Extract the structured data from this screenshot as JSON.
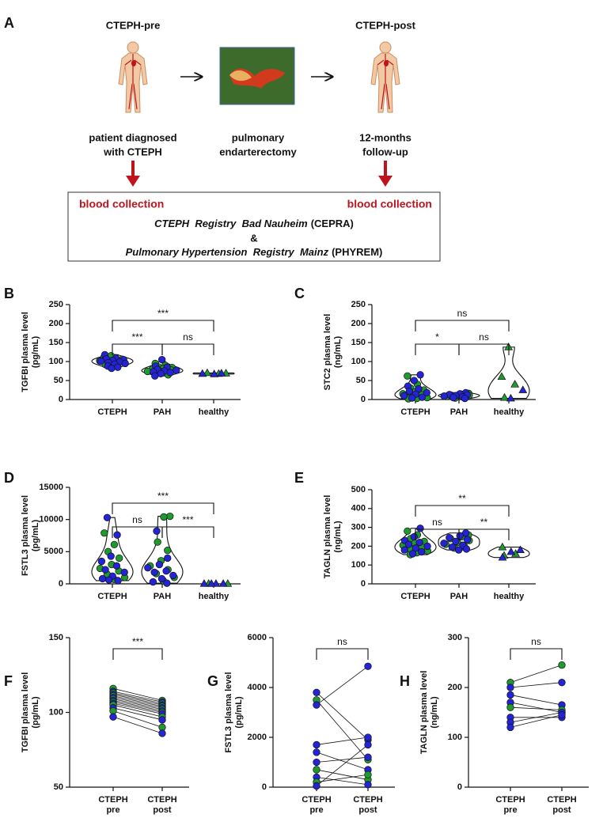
{
  "panel_a": {
    "letter": "A",
    "stages": [
      {
        "title": "CTEPH-pre",
        "caption": [
          "patient diagnosed",
          "with CTEPH"
        ]
      },
      {
        "caption": [
          "pulmonary",
          "endarterectomy"
        ]
      },
      {
        "title": "CTEPH-post",
        "caption": [
          "12-months",
          "follow-up"
        ]
      }
    ],
    "box": {
      "labels": [
        "blood collection",
        "blood collection"
      ],
      "registries": [
        {
          "name": "CTEPH  Registry  Bad Nauheim",
          "abbr": "(CEPRA)"
        },
        {
          "name": "Pulmonary Hypertension  Registry  Mainz",
          "abbr": "(PHYREM)"
        }
      ],
      "joiner": "&"
    }
  },
  "chart_data": [
    {
      "type": "violin",
      "panel": "B",
      "ylabel": [
        "TGFBI plasma level",
        "(pg/mL)"
      ],
      "categories": [
        "CTEPH",
        "PAH",
        "healthy"
      ],
      "ylim": [
        0,
        250
      ],
      "yticks": [
        0,
        50,
        100,
        150,
        200,
        250
      ],
      "markers": [
        "circle",
        "circle",
        "triangle"
      ],
      "groups": [
        {
          "sets": [
            {
              "color": "#1f9a2f",
              "values": [
                112,
                110,
                108,
                106,
                104,
                102,
                100,
                98,
                96,
                94,
                92,
                90,
                115
              ]
            },
            {
              "color": "#2424d6",
              "values": [
                118,
                109,
                107,
                105,
                103,
                101,
                99,
                97,
                95,
                93,
                88,
                85,
                82
              ]
            }
          ]
        },
        {
          "sets": [
            {
              "color": "#1f9a2f",
              "values": [
                95,
                90,
                86,
                84,
                82,
                80,
                78,
                76,
                74,
                72,
                70,
                65
              ]
            },
            {
              "color": "#2424d6",
              "values": [
                105,
                88,
                85,
                79,
                77,
                75,
                73,
                71,
                68,
                62
              ]
            }
          ]
        },
        {
          "sets": [
            {
              "color": "#1f9a2f",
              "values": [
                68,
                70,
                69
              ]
            },
            {
              "color": "#2424d6",
              "values": [
                67,
                68,
                69
              ]
            }
          ]
        }
      ],
      "brackets": [
        {
          "from": 0,
          "to": 2,
          "label": "***"
        },
        {
          "from": 0,
          "to": 1,
          "label": "***"
        },
        {
          "from": 1,
          "to": 2,
          "label": "ns"
        }
      ]
    },
    {
      "type": "violin",
      "panel": "C",
      "ylabel": [
        "STC2 plasma level",
        "(ng/mL)"
      ],
      "categories": [
        "CTEPH",
        "PAH",
        "healthy"
      ],
      "ylim": [
        0,
        250
      ],
      "yticks": [
        0,
        50,
        100,
        150,
        200,
        250
      ],
      "markers": [
        "circle",
        "circle",
        "triangle"
      ],
      "groups": [
        {
          "sets": [
            {
              "color": "#1f9a2f",
              "values": [
                62,
                40,
                30,
                25,
                20,
                15,
                12,
                8,
                5,
                3,
                2
              ]
            },
            {
              "color": "#2424d6",
              "values": [
                65,
                50,
                35,
                28,
                22,
                18,
                14,
                10,
                6,
                4
              ]
            }
          ]
        },
        {
          "sets": [
            {
              "color": "#1f9a2f",
              "values": [
                16,
                14,
                12,
                11,
                10,
                8,
                6,
                4
              ]
            },
            {
              "color": "#2424d6",
              "values": [
                18,
                15,
                13,
                12,
                10,
                9,
                7,
                5,
                3
              ]
            }
          ]
        },
        {
          "sets": [
            {
              "color": "#1f9a2f",
              "values": [
                138,
                60,
                40,
                5
              ]
            },
            {
              "color": "#2424d6",
              "values": [
                25,
                3
              ]
            }
          ]
        }
      ],
      "brackets": [
        {
          "from": 0,
          "to": 2,
          "label": "ns"
        },
        {
          "from": 0,
          "to": 1,
          "label": "*"
        },
        {
          "from": 1,
          "to": 2,
          "label": "ns"
        }
      ]
    },
    {
      "type": "violin",
      "panel": "D",
      "ylabel": [
        "FSTL3 plasma level",
        "(pg/mL)"
      ],
      "categories": [
        "CTEPH",
        "PAH",
        "healthy"
      ],
      "ylim": [
        0,
        15000
      ],
      "yticks": [
        0,
        5000,
        10000,
        15000
      ],
      "markers": [
        "circle",
        "circle",
        "triangle"
      ],
      "groups": [
        {
          "sets": [
            {
              "color": "#1f9a2f",
              "values": [
                7900,
                6100,
                5000,
                4000,
                3000,
                2400,
                2000,
                1500,
                1000,
                700
              ]
            },
            {
              "color": "#2424d6",
              "values": [
                10300,
                7600,
                4300,
                3500,
                2800,
                2200,
                1800,
                1200,
                800,
                500,
                600
              ]
            }
          ]
        },
        {
          "sets": [
            {
              "color": "#1f9a2f",
              "values": [
                10500,
                10400,
                6500,
                5200,
                3600,
                2800,
                2200,
                1600,
                1000,
                500
              ]
            },
            {
              "color": "#2424d6",
              "values": [
                8200,
                4000,
                3000,
                2500,
                2000,
                1800,
                1300,
                800,
                300,
                100
              ]
            }
          ]
        },
        {
          "sets": [
            {
              "color": "#1f9a2f",
              "values": [
                20,
                20
              ]
            },
            {
              "color": "#2424d6",
              "values": [
                20,
                20,
                20,
                20
              ]
            }
          ]
        }
      ],
      "brackets": [
        {
          "from": 0,
          "to": 2,
          "label": "***"
        },
        {
          "from": 0,
          "to": 1,
          "label": "ns"
        },
        {
          "from": 1,
          "to": 2,
          "label": "***"
        }
      ]
    },
    {
      "type": "violin",
      "panel": "E",
      "ylabel": [
        "TAGLN plasma level",
        "(ng/mL)"
      ],
      "categories": [
        "CTEPH",
        "PAH",
        "healthy"
      ],
      "ylim": [
        0,
        500
      ],
      "yticks": [
        0,
        100,
        200,
        300,
        400,
        500
      ],
      "markers": [
        "circle",
        "circle",
        "triangle"
      ],
      "groups": [
        {
          "sets": [
            {
              "color": "#1f9a2f",
              "values": [
                280,
                260,
                240,
                225,
                215,
                205,
                195,
                185,
                175,
                165,
                155
              ]
            },
            {
              "color": "#2424d6",
              "values": [
                295,
                250,
                230,
                220,
                210,
                200,
                190,
                180,
                170,
                160
              ]
            }
          ]
        },
        {
          "sets": [
            {
              "color": "#1f9a2f",
              "values": [
                260,
                250,
                240,
                230,
                220,
                210,
                200,
                190
              ]
            },
            {
              "color": "#2424d6",
              "values": [
                270,
                255,
                245,
                235,
                225,
                215,
                205,
                195,
                185,
                180
              ]
            }
          ]
        },
        {
          "sets": [
            {
              "color": "#1f9a2f",
              "values": [
                195,
                160,
                150
              ]
            },
            {
              "color": "#2424d6",
              "values": [
                180,
                170,
                140
              ]
            }
          ]
        }
      ],
      "brackets": [
        {
          "from": 0,
          "to": 2,
          "label": "**"
        },
        {
          "from": 0,
          "to": 1,
          "label": "ns"
        },
        {
          "from": 1,
          "to": 2,
          "label": "**"
        }
      ]
    },
    {
      "type": "paired",
      "panel": "F",
      "ylabel": [
        "TGFBI plasma level",
        "(pg/mL)"
      ],
      "categories": [
        [
          "CTEPH",
          "pre"
        ],
        [
          "CTEPH",
          "post"
        ]
      ],
      "ylim": [
        50,
        150
      ],
      "yticks": [
        50,
        100,
        150
      ],
      "series": [
        {
          "color": "#1f9a2f",
          "values": [
            116,
            108
          ]
        },
        {
          "color": "#2424d6",
          "values": [
            114,
            107
          ]
        },
        {
          "color": "#1f9a2f",
          "values": [
            113,
            106
          ]
        },
        {
          "color": "#2424d6",
          "values": [
            112,
            105
          ]
        },
        {
          "color": "#1f9a2f",
          "values": [
            111,
            104
          ]
        },
        {
          "color": "#2424d6",
          "values": [
            110,
            103
          ]
        },
        {
          "color": "#1f9a2f",
          "values": [
            109,
            102
          ]
        },
        {
          "color": "#2424d6",
          "values": [
            108,
            101
          ]
        },
        {
          "color": "#1f9a2f",
          "values": [
            107,
            100
          ]
        },
        {
          "color": "#2424d6",
          "values": [
            106,
            99
          ]
        },
        {
          "color": "#1f9a2f",
          "values": [
            105,
            97
          ]
        },
        {
          "color": "#2424d6",
          "values": [
            103,
            95
          ]
        },
        {
          "color": "#1f9a2f",
          "values": [
            101,
            90
          ]
        },
        {
          "color": "#2424d6",
          "values": [
            97,
            86
          ]
        }
      ],
      "brackets": [
        {
          "from": 0,
          "to": 1,
          "label": "***"
        }
      ]
    },
    {
      "type": "paired",
      "panel": "G",
      "ylabel": [
        "FSTL3 plasma level",
        "(pg/mL)"
      ],
      "categories": [
        [
          "CTEPH",
          "pre"
        ],
        [
          "CTEPH",
          "post"
        ]
      ],
      "ylim": [
        0,
        6000
      ],
      "yticks": [
        0,
        2000,
        4000,
        6000
      ],
      "series": [
        {
          "color": "#2424d6",
          "values": [
            3800,
            1900
          ]
        },
        {
          "color": "#1f9a2f",
          "values": [
            3500,
            1100
          ]
        },
        {
          "color": "#2424d6",
          "values": [
            3300,
            4850
          ]
        },
        {
          "color": "#2424d6",
          "values": [
            1700,
            2000
          ]
        },
        {
          "color": "#2424d6",
          "values": [
            1400,
            700
          ]
        },
        {
          "color": "#2424d6",
          "values": [
            1000,
            1200
          ]
        },
        {
          "color": "#1f9a2f",
          "values": [
            700,
            300
          ]
        },
        {
          "color": "#2424d6",
          "values": [
            400,
            100
          ]
        },
        {
          "color": "#1f9a2f",
          "values": [
            200,
            500
          ]
        },
        {
          "color": "#2424d6",
          "values": [
            50,
            1700
          ]
        }
      ],
      "brackets": [
        {
          "from": 0,
          "to": 1,
          "label": "ns"
        }
      ]
    },
    {
      "type": "paired",
      "panel": "H",
      "ylabel": [
        "TAGLN plasma level",
        "(ng/mL)"
      ],
      "categories": [
        [
          "CTEPH",
          "pre"
        ],
        [
          "CTEPH",
          "post"
        ]
      ],
      "ylim": [
        0,
        300
      ],
      "yticks": [
        0,
        100,
        200,
        300
      ],
      "series": [
        {
          "color": "#1f9a2f",
          "values": [
            210,
            245
          ]
        },
        {
          "color": "#2424d6",
          "values": [
            200,
            210
          ]
        },
        {
          "color": "#2424d6",
          "values": [
            185,
            165
          ]
        },
        {
          "color": "#2424d6",
          "values": [
            170,
            150
          ]
        },
        {
          "color": "#1f9a2f",
          "values": [
            160,
            155
          ]
        },
        {
          "color": "#2424d6",
          "values": [
            140,
            140
          ]
        },
        {
          "color": "#2424d6",
          "values": [
            130,
            150
          ]
        },
        {
          "color": "#2424d6",
          "values": [
            120,
            145
          ]
        }
      ],
      "brackets": [
        {
          "from": 0,
          "to": 1,
          "label": "ns"
        }
      ]
    }
  ]
}
